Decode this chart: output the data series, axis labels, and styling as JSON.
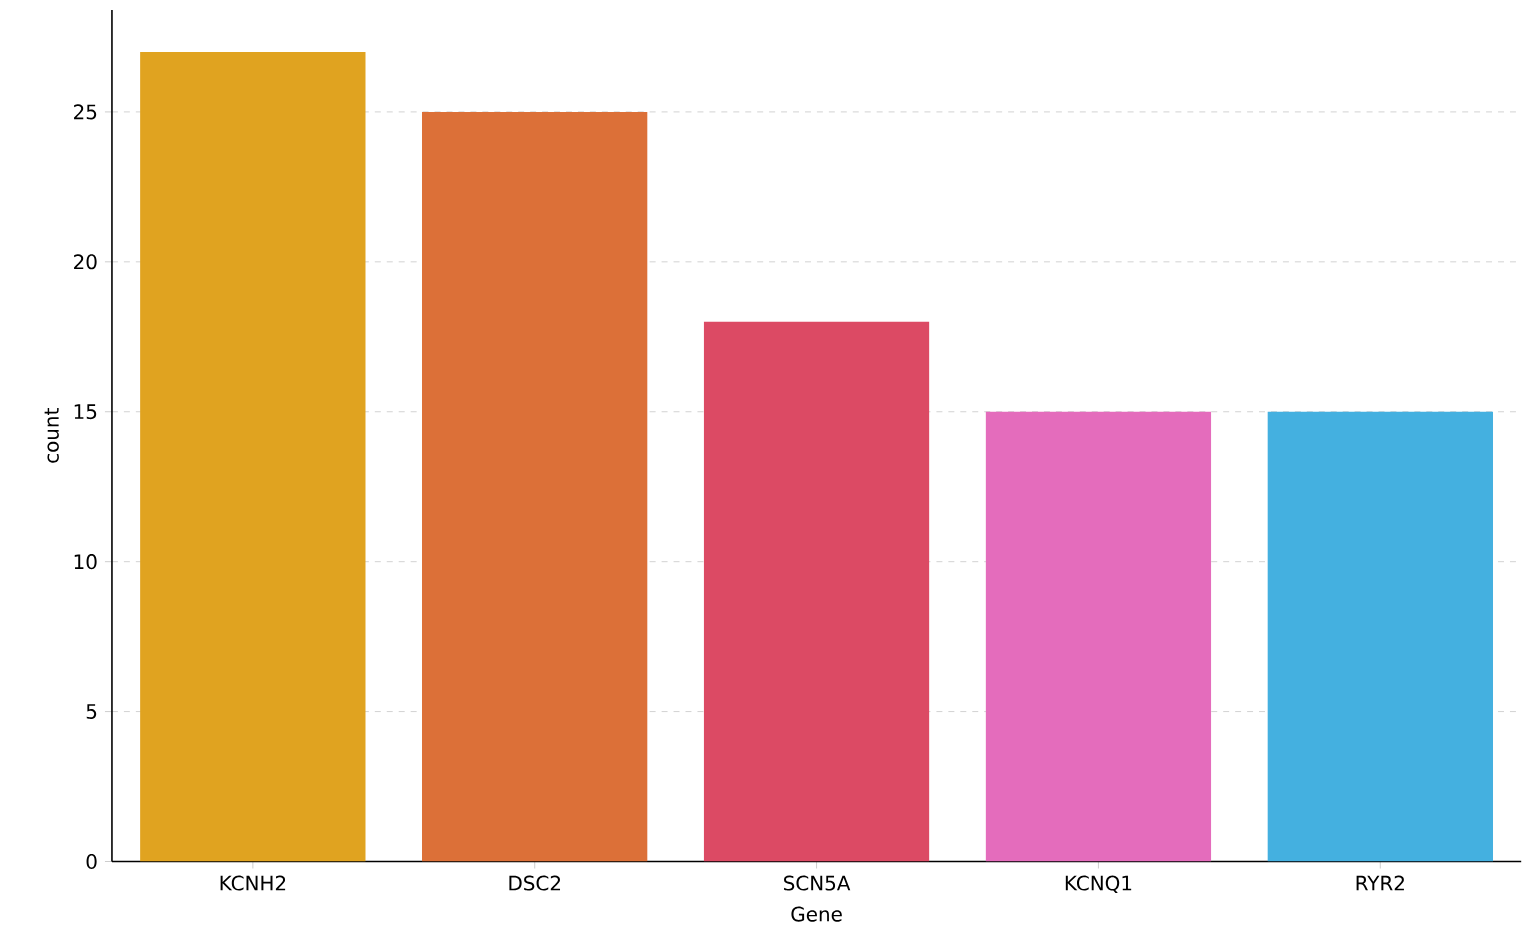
{
  "chart_data": {
    "type": "bar",
    "xlabel": "Gene",
    "ylabel": "count",
    "categories": [
      "KCNH2",
      "DSC2",
      "SCN5A",
      "KCNQ1",
      "RYR2"
    ],
    "values": [
      27,
      25,
      18,
      15,
      15
    ],
    "colors": [
      "#e0a320",
      "#dc7038",
      "#dc4a64",
      "#e46cbc",
      "#44b0e0"
    ],
    "ylim": [
      0,
      28.4
    ],
    "yticks": [
      0,
      5,
      10,
      15,
      20,
      25
    ],
    "grid": "y"
  }
}
